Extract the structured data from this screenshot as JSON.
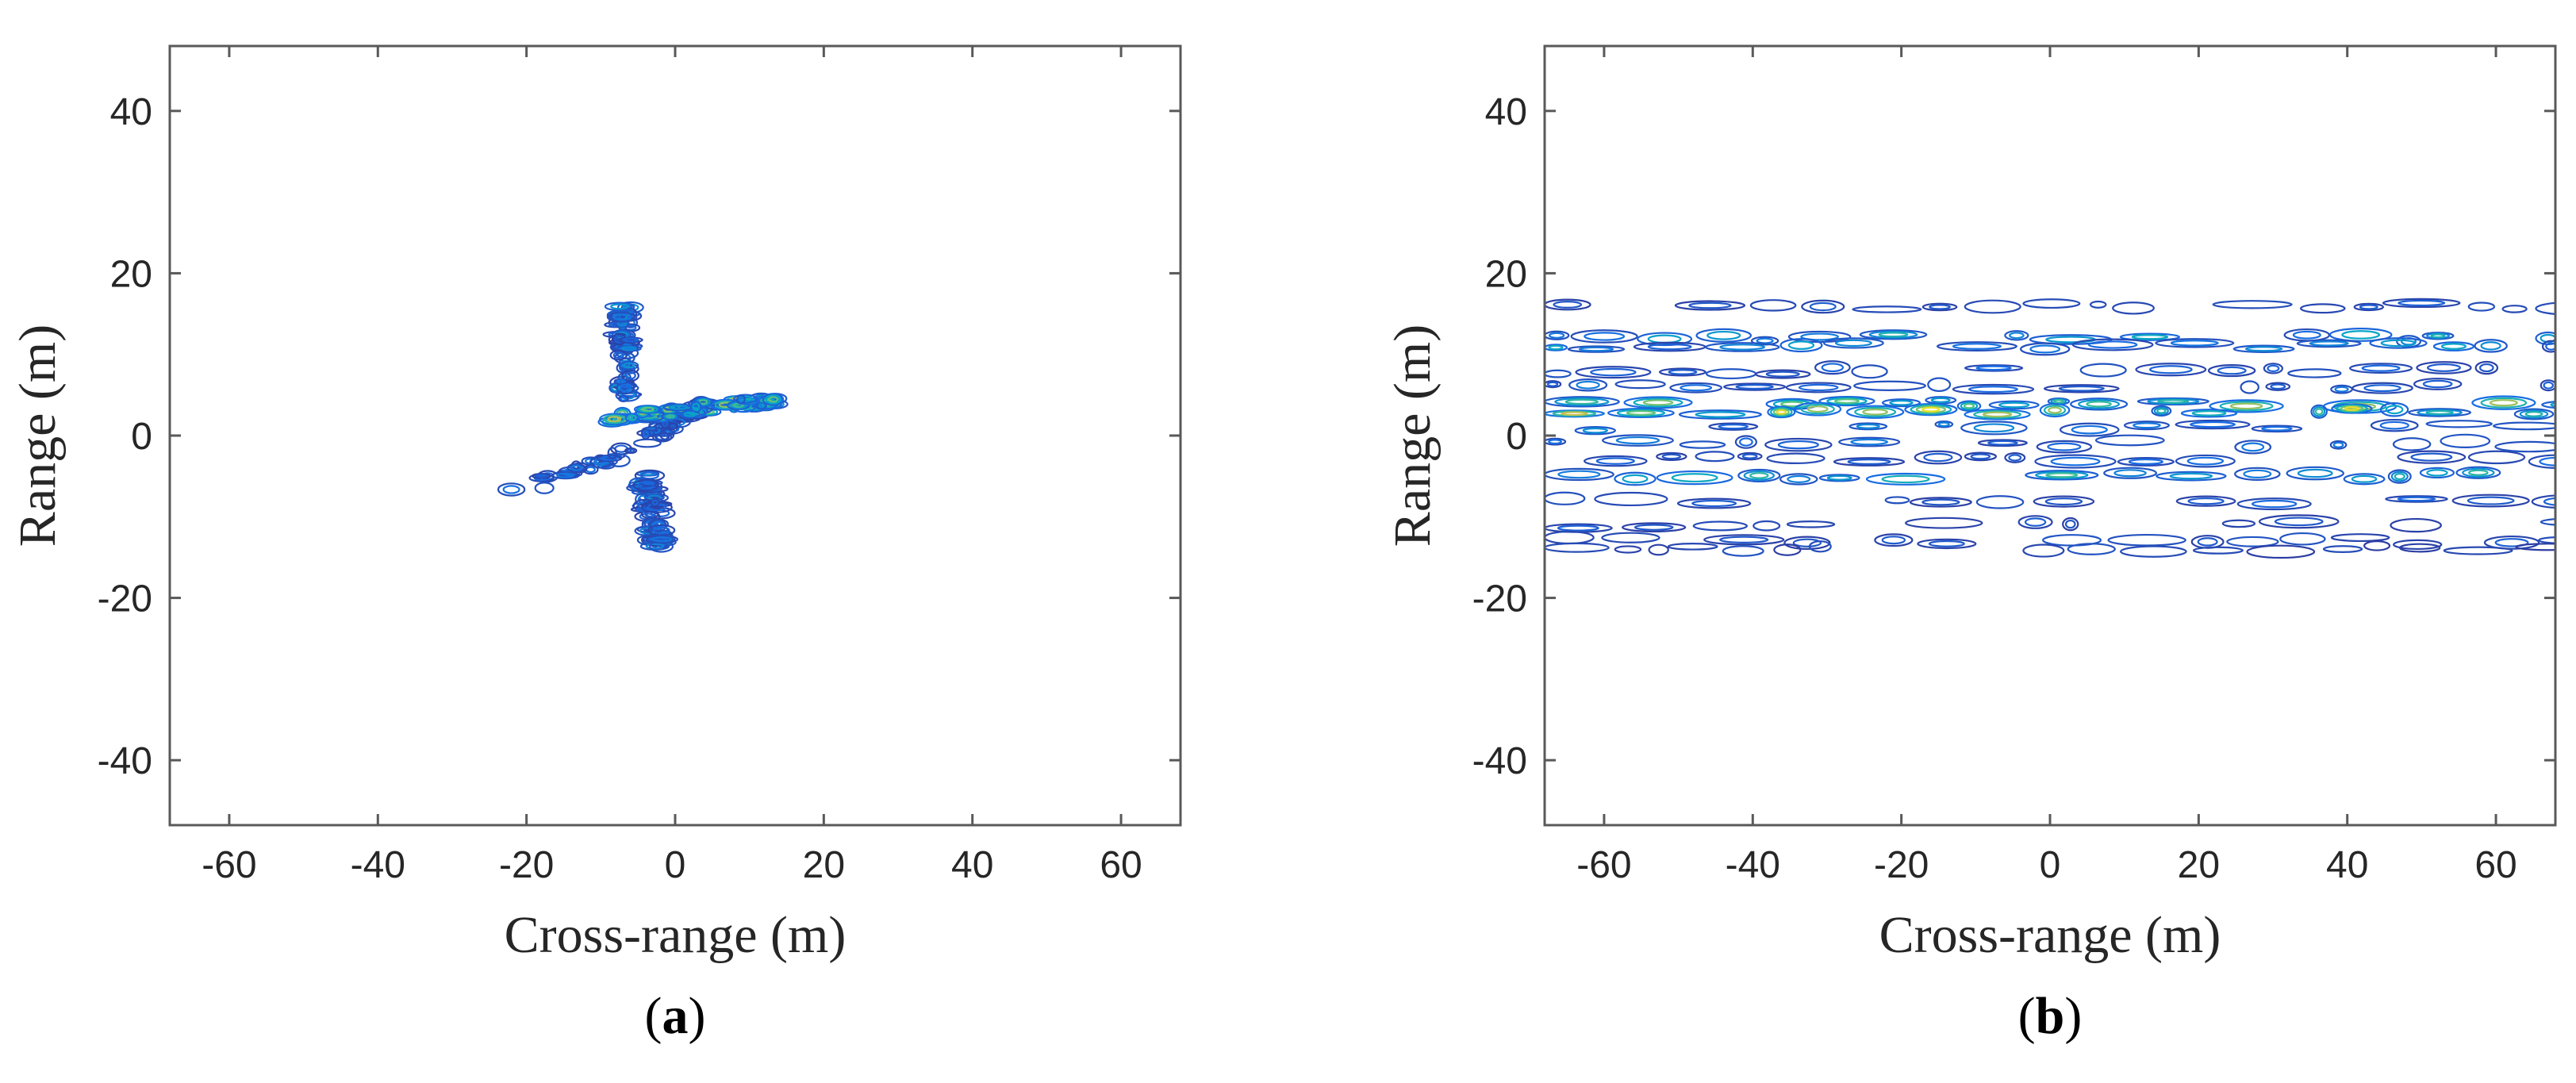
{
  "chart_data": [
    {
      "panel_label": "a",
      "type": "contour",
      "xlabel": "Cross-range (m)",
      "ylabel": "Range (m)",
      "xlim": [
        -68,
        68
      ],
      "ylim": [
        -48,
        48
      ],
      "xticks": [
        -60,
        -40,
        -20,
        0,
        20,
        40,
        60
      ],
      "yticks": [
        -40,
        -20,
        0,
        20,
        40
      ],
      "grid": false,
      "colormap": "parula",
      "features": [
        {
          "kind": "fuselage",
          "x": [
            -22,
            -12,
            -4,
            0,
            4
          ],
          "y": [
            -7,
            -4,
            -1,
            2,
            4
          ],
          "level": 0.3
        },
        {
          "kind": "wing-body",
          "x": [
            -8,
            0,
            8,
            14
          ],
          "y": [
            2,
            3,
            4,
            4
          ],
          "level": 0.8
        },
        {
          "kind": "tail-fin-upper",
          "x": [
            -7,
            -7
          ],
          "y": [
            5,
            16
          ],
          "level": 0.4
        },
        {
          "kind": "tail-fin-lower",
          "x": [
            -4,
            -2
          ],
          "y": [
            -5,
            -14
          ],
          "level": 0.4
        }
      ]
    },
    {
      "panel_label": "b",
      "type": "contour",
      "xlabel": "Cross-range (m)",
      "ylabel": "Range (m)",
      "xlim": [
        -68,
        68
      ],
      "ylim": [
        -48,
        48
      ],
      "xticks": [
        -60,
        -40,
        -20,
        0,
        20,
        40,
        60
      ],
      "yticks": [
        -40,
        -20,
        0,
        20,
        40
      ],
      "grid": false,
      "colormap": "parula",
      "range_bands": [
        {
          "range": 16,
          "level": 0.2
        },
        {
          "range": 12,
          "level": 0.55
        },
        {
          "range": 11,
          "level": 0.45
        },
        {
          "range": 8,
          "level": 0.25
        },
        {
          "range": 6,
          "level": 0.3
        },
        {
          "range": 4,
          "level": 0.8
        },
        {
          "range": 3,
          "level": 0.9
        },
        {
          "range": 1,
          "level": 0.35
        },
        {
          "range": -1,
          "level": 0.3
        },
        {
          "range": -3,
          "level": 0.25
        },
        {
          "range": -5,
          "level": 0.6
        },
        {
          "range": -8,
          "level": 0.25
        },
        {
          "range": -11,
          "level": 0.2
        },
        {
          "range": -13,
          "level": 0.2
        },
        {
          "range": -14,
          "level": 0.15
        }
      ]
    }
  ]
}
